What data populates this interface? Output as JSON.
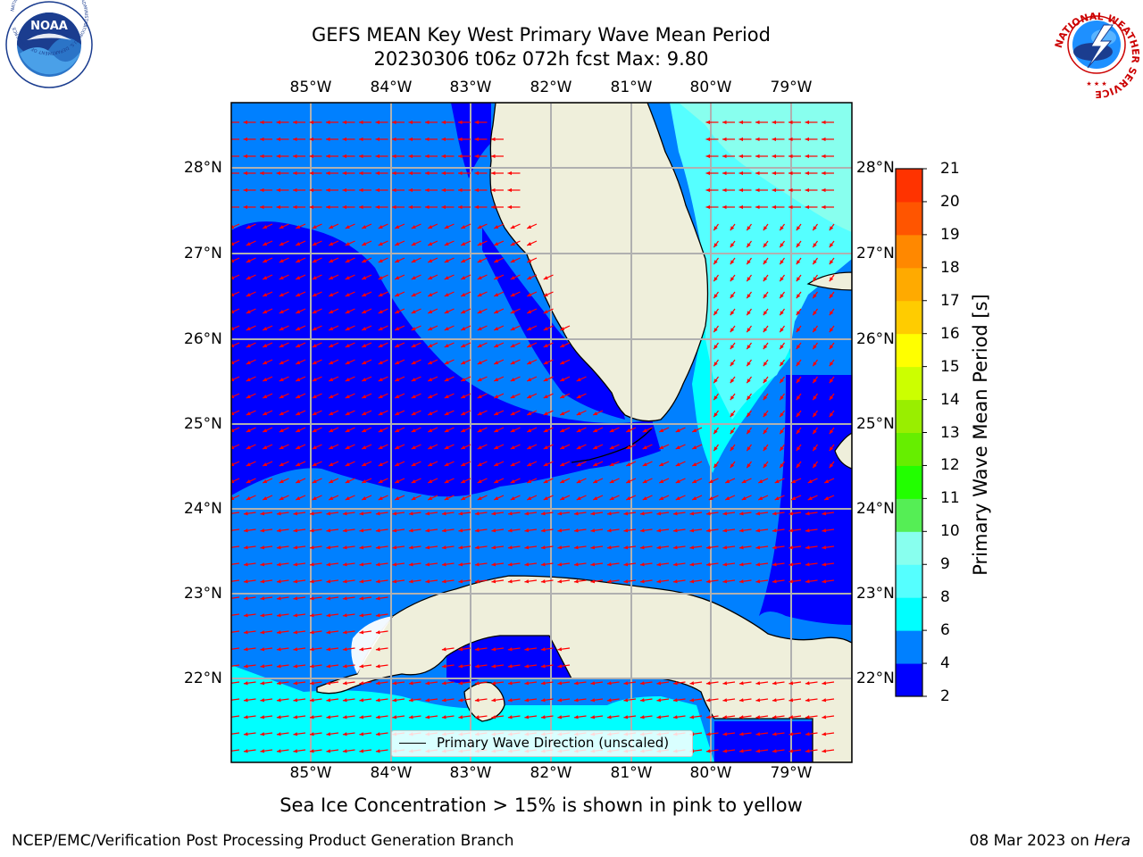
{
  "title": {
    "line1": "GEFS MEAN Key West Primary Wave Mean Period",
    "line2": "20230306 t06z 072h fcst   Max: 9.80"
  },
  "map": {
    "lon_labels": [
      "85°W",
      "84°W",
      "83°W",
      "82°W",
      "81°W",
      "80°W",
      "79°W"
    ],
    "lat_labels": [
      "28°N",
      "27°N",
      "26°N",
      "25°N",
      "24°N",
      "23°N",
      "22°N"
    ],
    "legend": "Primary Wave Direction (unscaled)",
    "vector_color": "#ff0000",
    "land_color": "#efefdb"
  },
  "colorbar": {
    "title": "Primary Wave Mean Period [s]",
    "ticks": [
      "2",
      "4",
      "6",
      "8",
      "9",
      "10",
      "11",
      "12",
      "13",
      "14",
      "15",
      "16",
      "17",
      "18",
      "19",
      "20",
      "21"
    ],
    "colors": [
      "#0000ff",
      "#0080ff",
      "#00ffff",
      "#55ffff",
      "#88ffee",
      "#55ee55",
      "#22ff00",
      "#66ee00",
      "#99ee00",
      "#ccff00",
      "#ffff00",
      "#ffcc00",
      "#ffaa00",
      "#ff8800",
      "#ff5500",
      "#ff3300"
    ]
  },
  "subnote": "Sea Ice Concentration > 15% is shown in pink to yellow",
  "footer": {
    "left": "NCEP/EMC/Verification Post Processing Product Generation Branch",
    "date": "08 Mar 2023 on ",
    "host": "Hera"
  },
  "logos": {
    "noaa": "NOAA",
    "noaa_ring": "NATIONAL OCEANIC AND ATMOSPHERIC ADMINISTRATION · U.S. DEPARTMENT OF COMMERCE",
    "nws_ring": "NATIONAL WEATHER SERVICE"
  }
}
